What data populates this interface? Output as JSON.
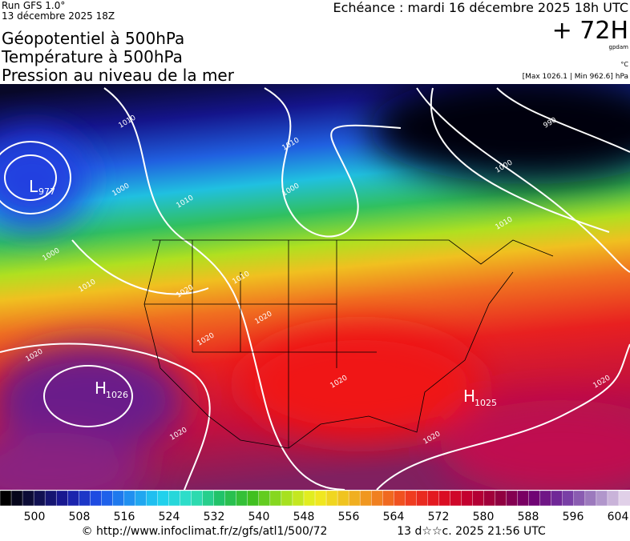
{
  "header": {
    "run": "Run GFS 1.0°",
    "run_date": "13 décembre 2025 18Z",
    "titles": [
      "Géopotentiel à 500hPa",
      "Température à 500hPa",
      "Pression au niveau de la mer"
    ],
    "forecast": "Echéance : mardi 16 décembre 2025 18h UTC",
    "lead": "+ 72H",
    "unit_geo": "gpdam",
    "unit_temp": "°C",
    "range": "[Max 1026.1 | Min 962.6] hPa"
  },
  "map": {
    "low": {
      "letter": "L",
      "value": "977"
    },
    "highs": [
      {
        "letter": "H",
        "value": "1026"
      },
      {
        "letter": "H",
        "value": "1025"
      }
    ],
    "isobar_labels": [
      "1010",
      "1000",
      "1010",
      "1010",
      "1000",
      "1010",
      "1000",
      "990",
      "1000",
      "1010",
      "1010",
      "1020",
      "1020",
      "1020",
      "1020",
      "1020",
      "1020",
      "1020",
      "1020"
    ]
  },
  "colorbar": {
    "labels": [
      "500",
      "508",
      "516",
      "524",
      "532",
      "540",
      "548",
      "556",
      "564",
      "572",
      "580",
      "588",
      "596",
      "604"
    ],
    "stops": [
      "#000000",
      "#10104a",
      "#1a1aa0",
      "#1e50e8",
      "#2090f0",
      "#20d0f0",
      "#30e0c0",
      "#20c060",
      "#40c020",
      "#a0e020",
      "#f0f020",
      "#f0c020",
      "#f08020",
      "#f04020",
      "#e01020",
      "#c00030",
      "#900040",
      "#700070",
      "#7030a0",
      "#a080c0",
      "#e0d0e8"
    ]
  },
  "footer": {
    "url": "© http://www.infoclimat.fr/z/gfs/atl1/500/72",
    "stamp": "13 d☆☆c. 2025 21:56 UTC"
  }
}
